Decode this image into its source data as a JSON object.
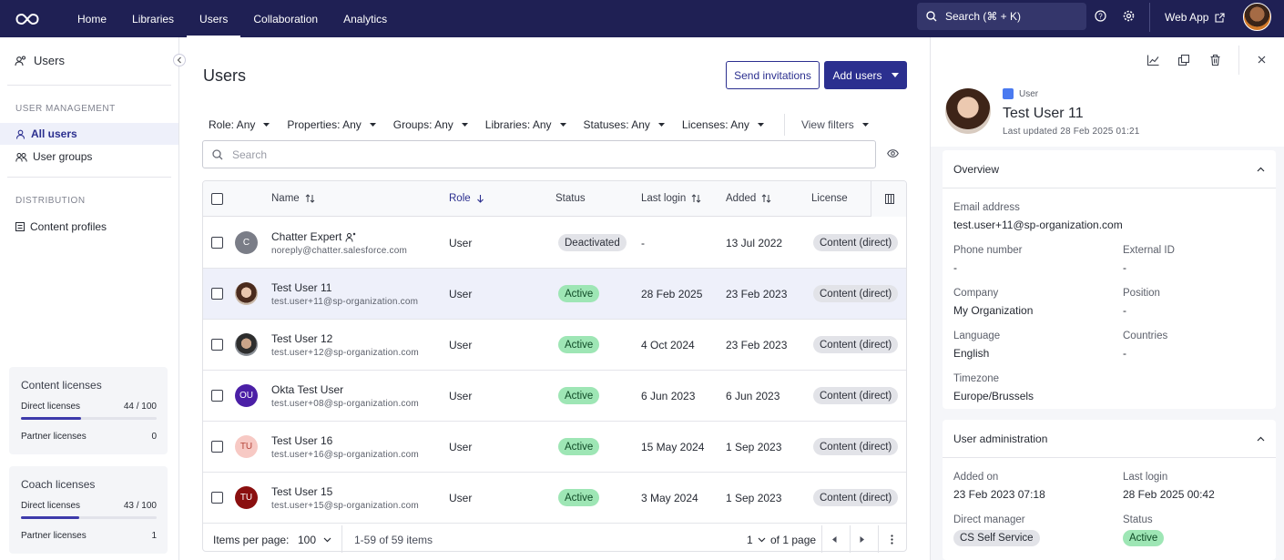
{
  "nav": {
    "items": [
      "Home",
      "Libraries",
      "Users",
      "Collaboration",
      "Analytics"
    ],
    "active": "Users",
    "search_label": "Search (⌘ + K)",
    "webapp_label": "Web App"
  },
  "sidebar": {
    "title": "Users",
    "section_management": "USER MANAGEMENT",
    "all_users": "All users",
    "user_groups": "User groups",
    "section_distribution": "DISTRIBUTION",
    "content_profiles": "Content profiles",
    "content_licenses": {
      "title": "Content licenses",
      "direct_label": "Direct licenses",
      "direct_value": "44 / 100",
      "direct_fraction": 0.44,
      "partner_label": "Partner licenses",
      "partner_value": "0"
    },
    "coach_licenses": {
      "title": "Coach licenses",
      "direct_label": "Direct licenses",
      "direct_value": "43 / 100",
      "direct_fraction": 0.43,
      "partner_label": "Partner licenses",
      "partner_value": "1"
    }
  },
  "main": {
    "title": "Users",
    "send_invitations": "Send invitations",
    "add_users": "Add users",
    "filters": [
      "Role: Any",
      "Properties: Any",
      "Groups: Any",
      "Libraries: Any",
      "Statuses: Any",
      "Licenses: Any"
    ],
    "view_filters": "View filters",
    "search_placeholder": "Search",
    "columns": {
      "name": "Name",
      "role": "Role",
      "status": "Status",
      "last_login": "Last login",
      "added": "Added",
      "license": "License"
    },
    "rows": [
      {
        "initials": "C",
        "name": "Chatter Expert",
        "email": "noreply@chatter.salesforce.com",
        "role": "User",
        "status": "Deactivated",
        "last_login": "-",
        "added": "13 Jul 2022",
        "license": "Content (direct)",
        "avatar_color": "#7a7d87"
      },
      {
        "initials": "",
        "name": "Test User 11",
        "email": "test.user+11@sp-organization.com",
        "role": "User",
        "status": "Active",
        "last_login": "28 Feb 2025",
        "added": "23 Feb 2023",
        "license": "Content (direct)",
        "avatar_color": ""
      },
      {
        "initials": "",
        "name": "Test User 12",
        "email": "test.user+12@sp-organization.com",
        "role": "User",
        "status": "Active",
        "last_login": "4 Oct 2024",
        "added": "23 Feb 2023",
        "license": "Content (direct)",
        "avatar_color": ""
      },
      {
        "initials": "OU",
        "name": "Okta Test User",
        "email": "test.user+08@sp-organization.com",
        "role": "User",
        "status": "Active",
        "last_login": "6 Jun 2023",
        "added": "6 Jun 2023",
        "license": "Content (direct)",
        "avatar_color": "#4b1fa6"
      },
      {
        "initials": "TU",
        "name": "Test User 16",
        "email": "test.user+16@sp-organization.com",
        "role": "User",
        "status": "Active",
        "last_login": "15 May 2024",
        "added": "1 Sep 2023",
        "license": "Content (direct)",
        "avatar_color": "#f7c9c4"
      },
      {
        "initials": "TU",
        "name": "Test User 15",
        "email": "test.user+15@sp-organization.com",
        "role": "User",
        "status": "Active",
        "last_login": "3 May 2024",
        "added": "1 Sep 2023",
        "license": "Content (direct)",
        "avatar_color": "#8a0f0f"
      }
    ],
    "pager": {
      "items_per_page_label": "Items per page:",
      "items_per_page": "100",
      "range": "1-59 of 59 items",
      "page": "1",
      "of_pages": "of 1 page"
    }
  },
  "panel": {
    "type_label": "User",
    "name": "Test User 11",
    "last_updated": "Last updated 28 Feb 2025 01:21",
    "overview_title": "Overview",
    "email_label": "Email address",
    "email": "test.user+11@sp-organization.com",
    "phone_label": "Phone number",
    "phone": "-",
    "external_id_label": "External ID",
    "external_id": "-",
    "company_label": "Company",
    "company": "My Organization",
    "position_label": "Position",
    "position": "-",
    "language_label": "Language",
    "language": "English",
    "countries_label": "Countries",
    "countries": "-",
    "timezone_label": "Timezone",
    "timezone": "Europe/Brussels",
    "admin_title": "User administration",
    "added_on_label": "Added on",
    "added_on": "23 Feb 2023 07:18",
    "last_login_label": "Last login",
    "last_login": "28 Feb 2025 00:42",
    "manager_label": "Direct manager",
    "manager": "CS Self Service",
    "status_label": "Status",
    "status": "Active"
  }
}
